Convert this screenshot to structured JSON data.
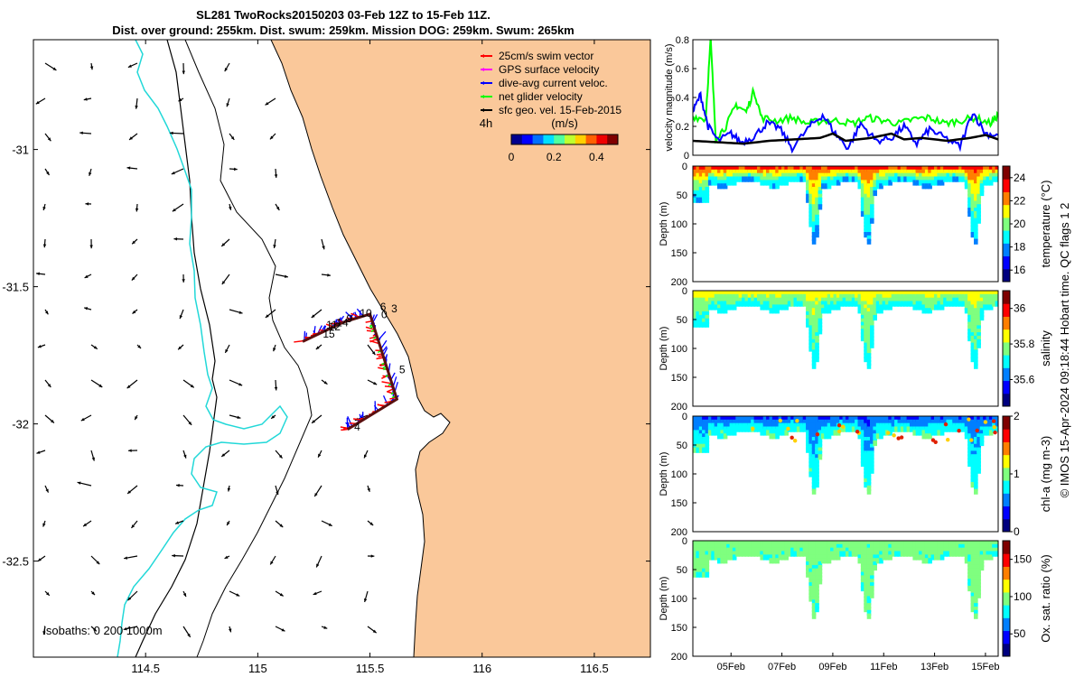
{
  "header": {
    "title_line1": "SL281 TwoRocks20150203 03-Feb 12Z to 15-Feb 11Z.",
    "title_line2": "Dist. over ground: 255km. Dist. swum: 259km. Mission DOG: 259km. Swum: 265km"
  },
  "footer": {
    "credit": "© IMOS 15-Apr-2024 09:18:44 Hobart time. QC flags 1  2"
  },
  "colors": {
    "land": "#FAC89A",
    "isobath": "#000000",
    "shelf_isobath": "#22D8D8",
    "swim_vector": "#FF0000",
    "gps_velocity": "#FF00FF",
    "dive_current": "#0000FF",
    "net_glider": "#00FF00",
    "geostrophic": "#000000",
    "track": "#5A0F0F"
  },
  "chart_data": [
    {
      "type": "scatter",
      "name": "map",
      "x_ticks": [
        114.5,
        115,
        115.5,
        116,
        116.5
      ],
      "x_tick_labels": [
        "114.5",
        "115",
        "115.5",
        "116",
        "116.5"
      ],
      "y_ticks": [
        -31,
        -31.5,
        -32,
        -32.5
      ],
      "y_tick_labels": [
        "-31",
        "-31.5",
        "-32",
        "-32.5"
      ],
      "xlim": [
        114.0,
        116.75
      ],
      "ylim": [
        -32.85,
        -30.6
      ],
      "legend": {
        "position": "top-right",
        "entries": [
          {
            "label": "25cm/s swim vector",
            "color": "#FF0000"
          },
          {
            "label": "GPS surface velocity",
            "color": "#FF00FF"
          },
          {
            "label": "dive-avg current veloc.",
            "color": "#0000FF"
          },
          {
            "label": "net glider velocity",
            "color": "#00FF00"
          },
          {
            "label": "sfc geo. vel. 15-Feb-2015",
            "color": "#000000"
          }
        ]
      },
      "colorbar": {
        "label": "(m/s)",
        "ticks": [
          "0",
          "0.2",
          "0.4"
        ],
        "range": [
          0,
          0.5
        ]
      },
      "time_marker": "4h",
      "isobath_label": "isobaths: 0   200  1000m",
      "track": [
        {
          "x": 115.4,
          "y": -32.02
        },
        {
          "x": 115.62,
          "y": -31.91
        },
        {
          "x": 115.5,
          "y": -31.6
        },
        {
          "x": 115.38,
          "y": -31.63
        },
        {
          "x": 115.2,
          "y": -31.7
        }
      ],
      "day_labels": [
        {
          "label": "6",
          "x": 115.545,
          "y": -31.587
        },
        {
          "label": "3",
          "x": 115.595,
          "y": -31.593
        },
        {
          "label": "0",
          "x": 115.55,
          "y": -31.615
        },
        {
          "label": "10",
          "x": 115.455,
          "y": -31.61
        },
        {
          "label": "9",
          "x": 115.395,
          "y": -31.63
        },
        {
          "label": "11",
          "x": 115.305,
          "y": -31.652
        },
        {
          "label": "14",
          "x": 115.35,
          "y": -31.645
        },
        {
          "label": "12",
          "x": 115.315,
          "y": -31.66
        },
        {
          "label": "15",
          "x": 115.29,
          "y": -31.685
        },
        {
          "label": "5",
          "x": 115.63,
          "y": -31.815
        },
        {
          "label": "4",
          "x": 115.43,
          "y": -32.025
        }
      ]
    },
    {
      "type": "line",
      "name": "velocity",
      "ylabel": "velocity magnitude (m/s)",
      "ylim": [
        0,
        0.8
      ],
      "y_ticks": [
        "0",
        "0.2",
        "0.4",
        "0.6",
        "0.8"
      ],
      "xlim": [
        3.5,
        15.5
      ],
      "series": [
        {
          "color": "#00FF00",
          "values": [
            [
              3.5,
              0.27
            ],
            [
              4.0,
              0.25
            ],
            [
              4.2,
              0.8
            ],
            [
              4.4,
              0.12
            ],
            [
              4.8,
              0.2
            ],
            [
              5.2,
              0.35
            ],
            [
              5.6,
              0.3
            ],
            [
              5.9,
              0.45
            ],
            [
              6.2,
              0.26
            ],
            [
              6.8,
              0.24
            ],
            [
              7.4,
              0.26
            ],
            [
              8.0,
              0.22
            ],
            [
              8.6,
              0.24
            ],
            [
              9.2,
              0.24
            ],
            [
              9.8,
              0.22
            ],
            [
              10.4,
              0.26
            ],
            [
              11.0,
              0.24
            ],
            [
              11.6,
              0.22
            ],
            [
              12.2,
              0.25
            ],
            [
              12.8,
              0.26
            ],
            [
              13.4,
              0.22
            ],
            [
              14.0,
              0.24
            ],
            [
              14.6,
              0.26
            ],
            [
              15.2,
              0.22
            ],
            [
              15.5,
              0.28
            ]
          ]
        },
        {
          "color": "#0000FF",
          "values": [
            [
              3.5,
              0.3
            ],
            [
              3.8,
              0.42
            ],
            [
              4.1,
              0.2
            ],
            [
              4.5,
              0.1
            ],
            [
              5.0,
              0.15
            ],
            [
              5.4,
              0.09
            ],
            [
              5.9,
              0.13
            ],
            [
              6.4,
              0.22
            ],
            [
              6.9,
              0.19
            ],
            [
              7.4,
              0.05
            ],
            [
              8.1,
              0.2
            ],
            [
              8.6,
              0.28
            ],
            [
              9.1,
              0.15
            ],
            [
              9.6,
              0.05
            ],
            [
              10.1,
              0.22
            ],
            [
              10.7,
              0.1
            ],
            [
              11.3,
              0.12
            ],
            [
              11.8,
              0.2
            ],
            [
              12.3,
              0.08
            ],
            [
              12.8,
              0.18
            ],
            [
              13.4,
              0.12
            ],
            [
              14.0,
              0.06
            ],
            [
              14.5,
              0.3
            ],
            [
              15.0,
              0.15
            ],
            [
              15.5,
              0.14
            ]
          ]
        },
        {
          "color": "#000000",
          "values": [
            [
              3.5,
              0.1
            ],
            [
              4.5,
              0.09
            ],
            [
              5.5,
              0.08
            ],
            [
              6.5,
              0.1
            ],
            [
              7.5,
              0.11
            ],
            [
              8.5,
              0.12
            ],
            [
              9.0,
              0.15
            ],
            [
              9.5,
              0.1
            ],
            [
              10.5,
              0.12
            ],
            [
              11.3,
              0.15
            ],
            [
              11.8,
              0.11
            ],
            [
              12.5,
              0.12
            ],
            [
              13.5,
              0.1
            ],
            [
              14.4,
              0.12
            ],
            [
              15.0,
              0.14
            ],
            [
              15.5,
              0.11
            ]
          ]
        }
      ]
    },
    {
      "type": "heatmap",
      "name": "temperature",
      "ylabel": "Depth (m)",
      "colorbar_label": "temperature (°C)",
      "colorbar_ticks": [
        "16",
        "18",
        "20",
        "22",
        "24"
      ],
      "clim": [
        15,
        25
      ],
      "ylim": [
        0,
        200
      ],
      "y_ticks": [
        "0",
        "50",
        "100",
        "150",
        "200"
      ],
      "surface_value": 23.0,
      "deep_value": 18.0
    },
    {
      "type": "heatmap",
      "name": "salinity",
      "ylabel": "Depth (m)",
      "colorbar_label": "salinity",
      "colorbar_ticks": [
        "35.6",
        "35.8",
        "36"
      ],
      "clim": [
        35.45,
        36.1
      ],
      "ylim": [
        0,
        200
      ],
      "y_ticks": [
        "0",
        "50",
        "100",
        "150",
        "200"
      ],
      "surface_value": 35.85,
      "deep_value": 35.7
    },
    {
      "type": "heatmap",
      "name": "chl-a",
      "ylabel": "Depth (m)",
      "colorbar_label": "chl-a (mg m-3)",
      "colorbar_ticks": [
        "0",
        "1",
        "2"
      ],
      "clim": [
        0,
        2
      ],
      "ylim": [
        0,
        200
      ],
      "y_ticks": [
        "0",
        "50",
        "100",
        "150",
        "200"
      ],
      "surface_value": 0.45,
      "deep_value": 0.9
    },
    {
      "type": "heatmap",
      "name": "oxygen",
      "ylabel": "Depth (m)",
      "colorbar_label": "Ox. sat. ratio (%)",
      "colorbar_ticks": [
        "50",
        "100",
        "150"
      ],
      "clim": [
        20,
        175
      ],
      "ylim": [
        0,
        200
      ],
      "y_ticks": [
        "0",
        "50",
        "100",
        "150",
        "200"
      ],
      "surface_value": 95,
      "deep_value": 92,
      "x_ticks": [
        "05Feb",
        "07Feb",
        "09Feb",
        "11Feb",
        "13Feb",
        "15Feb"
      ],
      "x_tick_values": [
        5,
        7,
        9,
        11,
        13,
        15
      ]
    }
  ]
}
